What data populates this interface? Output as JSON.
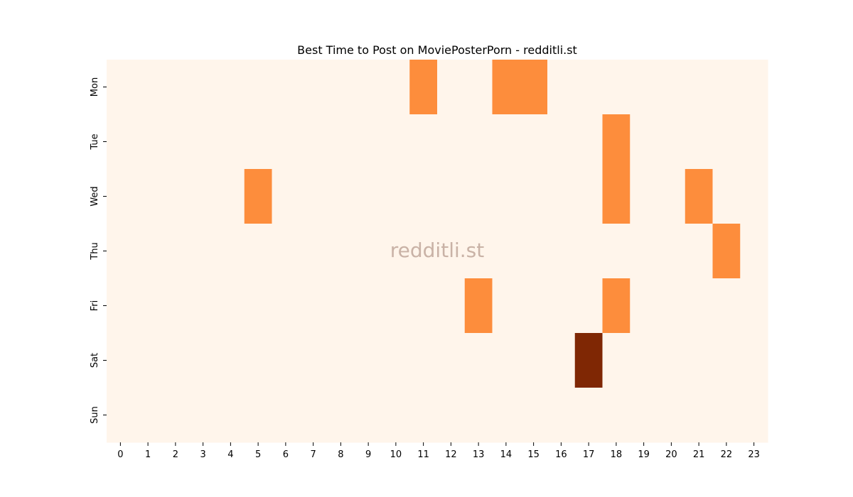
{
  "chart_data": {
    "type": "heatmap",
    "title": "Best Time to Post on MoviePosterPorn - redditli.st",
    "watermark": "redditli.st",
    "xlabel": "",
    "ylabel": "",
    "x_categories": [
      "0",
      "1",
      "2",
      "3",
      "4",
      "5",
      "6",
      "7",
      "8",
      "9",
      "10",
      "11",
      "12",
      "13",
      "14",
      "15",
      "16",
      "17",
      "18",
      "19",
      "20",
      "21",
      "22",
      "23"
    ],
    "y_categories": [
      "Mon",
      "Tue",
      "Wed",
      "Thu",
      "Fri",
      "Sat",
      "Sun"
    ],
    "values": [
      [
        0,
        0,
        0,
        0,
        0,
        0,
        0,
        0,
        0,
        0,
        0,
        1,
        0,
        0,
        1,
        1,
        0,
        0,
        0,
        0,
        0,
        0,
        0,
        0
      ],
      [
        0,
        0,
        0,
        0,
        0,
        0,
        0,
        0,
        0,
        0,
        0,
        0,
        0,
        0,
        0,
        0,
        0,
        0,
        1,
        0,
        0,
        0,
        0,
        0
      ],
      [
        0,
        0,
        0,
        0,
        0,
        1,
        0,
        0,
        0,
        0,
        0,
        0,
        0,
        0,
        0,
        0,
        0,
        0,
        1,
        0,
        0,
        1,
        0,
        0
      ],
      [
        0,
        0,
        0,
        0,
        0,
        0,
        0,
        0,
        0,
        0,
        0,
        0,
        0,
        0,
        0,
        0,
        0,
        0,
        0,
        0,
        0,
        0,
        1,
        0
      ],
      [
        0,
        0,
        0,
        0,
        0,
        0,
        0,
        0,
        0,
        0,
        0,
        0,
        0,
        1,
        0,
        0,
        0,
        0,
        1,
        0,
        0,
        0,
        0,
        0
      ],
      [
        0,
        0,
        0,
        0,
        0,
        0,
        0,
        0,
        0,
        0,
        0,
        0,
        0,
        0,
        0,
        0,
        0,
        2,
        0,
        0,
        0,
        0,
        0,
        0
      ],
      [
        0,
        0,
        0,
        0,
        0,
        0,
        0,
        0,
        0,
        0,
        0,
        0,
        0,
        0,
        0,
        0,
        0,
        0,
        0,
        0,
        0,
        0,
        0,
        0
      ]
    ],
    "color_scale": {
      "0": "#fff5eb",
      "1": "#fd8d3c",
      "2": "#7f2704"
    },
    "legend": "none",
    "grid": false
  }
}
